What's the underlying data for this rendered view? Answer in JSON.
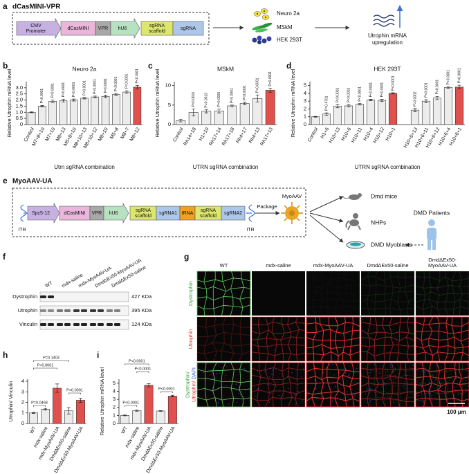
{
  "panel_labels": [
    "a",
    "b",
    "c",
    "d",
    "e",
    "f",
    "g",
    "h",
    "i"
  ],
  "panel_a": {
    "title": "dCasMINI-VPR",
    "construct": [
      [
        "CMV",
        "Promoter"
      ],
      [
        "dCasMINI"
      ],
      [
        "VPR"
      ],
      [
        "hU6"
      ],
      [
        "sgRNA",
        "scaffold"
      ],
      [
        "sgRNA"
      ]
    ],
    "cells": [
      "Neuro 2a",
      "MSkM",
      "HEK 293T"
    ],
    "outcome": [
      "Utrophin mRNA",
      "upregulation"
    ]
  },
  "panel_e": {
    "title": "MyoAAV-UA",
    "construct": [
      [
        "Spc5-12"
      ],
      [
        "dCasMINI"
      ],
      [
        "VPR"
      ],
      [
        "hU6"
      ],
      [
        "sgRNA",
        "scaffold"
      ],
      [
        "sgRNA1"
      ],
      [
        "tRNA"
      ],
      [
        "sgRNA",
        "scaffold"
      ],
      [
        "sgRNA2"
      ]
    ],
    "itr": [
      "ITR",
      "ITR"
    ],
    "package": "Package",
    "vector": "MyoAAV",
    "targets": [
      "Dmd mice",
      "NHPs",
      "DMD Myoblasts"
    ],
    "patients": "DMD Patients"
  },
  "blot": {
    "lanes": [
      "WT",
      "mdx-saline",
      "mdx-MyoAAV-UA",
      "DmdΔEx50-MyoAAV-UA",
      "DmdΔEx50-saline"
    ],
    "rows": [
      {
        "protein": "Dystrophin",
        "size": "427 KDa"
      },
      {
        "protein": "Utrophin",
        "size": "395 KDa"
      },
      {
        "protein": "Vinculin",
        "size": "124 KDa"
      }
    ]
  },
  "imaging": {
    "columns": [
      [
        "WT"
      ],
      [
        "mdx-saline"
      ],
      [
        "mdx-MyoAAV-UA"
      ],
      [
        "DmdΔEx50-saline"
      ],
      [
        "DmdΔEx50-",
        "MyoAAV-UA"
      ]
    ],
    "rows": [
      [
        [
          {
            "text": "Dystrophin",
            "color": "#3aa23a"
          }
        ]
      ],
      [
        [
          {
            "text": "Utrophin",
            "color": "#d42a2a"
          }
        ]
      ],
      [
        [
          {
            "text": "Dystrophin/",
            "color": "#3aa23a"
          }
        ],
        [
          {
            "text": "Utrophin/",
            "color": "#d42a2a"
          },
          {
            "text": " DAPI",
            "color": "#2a4fd4"
          }
        ]
      ]
    ],
    "scale_bar": "100 μm"
  },
  "chart_data": [
    {
      "type": "bar",
      "title": "Neuro 2a",
      "y_label": "Relative Utrophin mRNA level",
      "x_label": "Utrn sgRNA combination",
      "categories": [
        "Control",
        "M7+8+10",
        "M7+10",
        "M8+13",
        "M5+8+10",
        "M8+10+13",
        "M8+10+12",
        "M8+10",
        "M5+8",
        "M8+7",
        "M8+12"
      ],
      "values": [
        1.0,
        1.5,
        1.9,
        1.95,
        2.0,
        2.15,
        2.25,
        2.3,
        2.45,
        2.65,
        3.05
      ],
      "errors": [
        0.04,
        0.06,
        0.1,
        0.12,
        0.08,
        0.06,
        0.07,
        0.1,
        0.08,
        0.1,
        0.14
      ],
      "colors": [
        "#ececec",
        "#ececec",
        "#ececec",
        "#ececec",
        "#ececec",
        "#ececec",
        "#ececec",
        "#ececec",
        "#ececec",
        "#ececec",
        "#e0504c"
      ],
      "annotations": [
        null,
        "P<0.0001",
        "P<0.0001",
        "P<0.0001",
        "P<0.0001",
        "P<0.0001",
        "P<0.0001",
        "P<0.0001",
        "P<0.0001",
        "P<0.0001",
        "P<0.0001"
      ],
      "ylim": [
        0,
        3.5
      ],
      "yticks": [
        0,
        0.5,
        {
          "value": 1,
          "label": "1.0"
        },
        1.5,
        {
          "value": 2,
          "label": "2.0"
        },
        2.5,
        {
          "value": 3,
          "label": "3.0"
        }
      ]
    },
    {
      "type": "bar",
      "title": "MSkM",
      "y_label": "Relative Utrophin mRNA level",
      "x_label": "UTRN sgRNA combination",
      "categories": [
        "Control",
        "Rh14+18",
        "H1+10",
        "Rh17+14",
        "Rh17+18",
        "Rh4+17",
        "Rh4+13",
        "Rh17+13"
      ],
      "values": [
        1.0,
        3.1,
        3.4,
        3.5,
        4.8,
        5.4,
        6.7,
        8.8
      ],
      "errors": [
        0.3,
        0.9,
        0.4,
        0.5,
        0.2,
        0.3,
        0.9,
        0.5
      ],
      "colors": [
        "#ececec",
        "#ececec",
        "#ececec",
        "#ececec",
        "#ececec",
        "#ececec",
        "#ececec",
        "#e0504c"
      ],
      "annotations": [
        null,
        "P=0.0016",
        "P=0.0013",
        "P=0.0005",
        "P<0.0001",
        "P<0.0001",
        "P<0.0001",
        "P<0.0001"
      ],
      "ylim": [
        0,
        11
      ],
      "yticks": [
        0,
        5,
        10
      ]
    },
    {
      "type": "bar",
      "title": "HEK 293T",
      "y_label": "Relative Utrophin mRNA level",
      "x_label": "UTRN sgRNA combination",
      "categories": [
        "Control",
        "H1+6",
        "H10+13",
        "H10+6",
        "H10+11",
        "H10+4",
        "H10+12",
        "H10+1",
        null,
        "H10+6+13",
        "H10+6+11",
        "H10+6+12",
        "H10+6+4",
        "H10+6+1"
      ],
      "values": [
        1.0,
        1.35,
        2.35,
        2.4,
        2.6,
        3.15,
        3.1,
        4.0,
        null,
        1.85,
        3.0,
        3.4,
        4.75,
        4.8
      ],
      "errors": [
        0.05,
        0.15,
        0.2,
        0.15,
        0.1,
        0.1,
        0.15,
        0.08,
        null,
        0.2,
        0.2,
        0.2,
        0.08,
        0.25
      ],
      "colors": [
        "#ececec",
        "#ececec",
        "#ececec",
        "#ececec",
        "#ececec",
        "#ececec",
        "#ececec",
        "#e0504c",
        null,
        "#ececec",
        "#ececec",
        "#ececec",
        "#ececec",
        "#e0504c"
      ],
      "annotations": [
        null,
        "P=0.4701",
        "P<0.0001",
        "P<0.0001",
        "P<0.0001",
        "P<0.0001",
        "P<0.0001",
        "P<0.0001",
        null,
        "P=0.0002",
        "P<0.0001",
        "P=0.0001",
        "P<0.0001",
        "P<0.0001"
      ],
      "ylim": [
        0,
        5.5
      ],
      "yticks": [
        0,
        1,
        2,
        3,
        4,
        5
      ]
    },
    {
      "type": "bar",
      "y_label": "Utrophin/ Vinculin",
      "categories": [
        "WT",
        "mdx-saline",
        "mdx-MyoAAV-UA",
        "DmdΔEx50-saline",
        "DmdΔEx50-MyoAAV-UA"
      ],
      "values": [
        1.0,
        1.35,
        3.35,
        1.2,
        2.2
      ],
      "errors": [
        0.05,
        0.08,
        0.4,
        0.3,
        0.2
      ],
      "colors": [
        "#ececec",
        "#ececec",
        "#e0504c",
        "#ececec",
        "#e0504c"
      ],
      "comparisons": [
        "P=0.1403",
        "P<0.0001",
        "P=0.0468",
        "P<0.0001"
      ],
      "ylim": [
        0,
        4.2
      ],
      "yticks": [
        0,
        1,
        2,
        3,
        4
      ]
    },
    {
      "type": "bar",
      "y_label": "Relative Utrophin mRNA level",
      "categories": [
        "WT",
        "mdx-saline",
        "mdx-MyoAAV-UA",
        "DmdΔEx50-saline",
        "DmdΔEx50-MyoAAV-UA"
      ],
      "values": [
        1.0,
        1.6,
        4.75,
        1.55,
        3.4
      ],
      "errors": [
        0.05,
        0.08,
        0.2,
        0.05,
        0.1
      ],
      "colors": [
        "#ececec",
        "#ececec",
        "#e0504c",
        "#ececec",
        "#e0504c"
      ],
      "comparisons": [
        "P<0.0001",
        "P<0.0001",
        "P<0.0001",
        "P<0.0001"
      ],
      "ylim": [
        0,
        5.5
      ],
      "yticks": [
        0,
        1,
        2,
        3,
        4,
        5
      ]
    }
  ]
}
